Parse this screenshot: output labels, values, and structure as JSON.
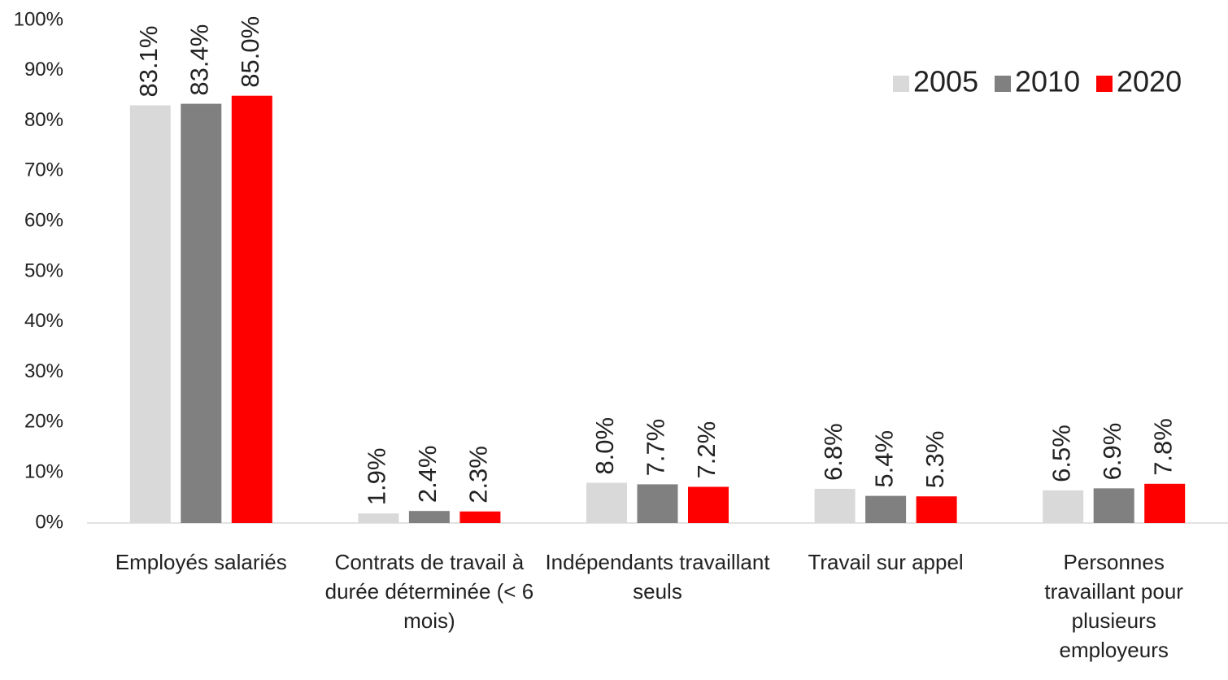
{
  "chart_data": {
    "type": "bar",
    "categories": [
      "Employés salariés",
      "Contrats de travail à durée déterminée (< 6 mois)",
      "Indépendants travaillant seuls",
      "Travail sur appel",
      "Personnes travaillant pour plusieurs employeurs"
    ],
    "series": [
      {
        "name": "2005",
        "color": "#d9d9d9",
        "values": [
          83.1,
          1.9,
          8.0,
          6.8,
          6.5
        ],
        "value_labels": [
          "83.1%",
          "1.9%",
          "8.0%",
          "6.8%",
          "6.5%"
        ]
      },
      {
        "name": "2010",
        "color": "#808080",
        "values": [
          83.4,
          2.4,
          7.7,
          5.4,
          6.9
        ],
        "value_labels": [
          "83.4%",
          "2.4%",
          "7.7%",
          "5.4%",
          "6.9%"
        ]
      },
      {
        "name": "2020",
        "color": "#ff0000",
        "values": [
          85.0,
          2.3,
          7.2,
          5.3,
          7.8
        ],
        "value_labels": [
          "85.0%",
          "2.3%",
          "7.2%",
          "5.3%",
          "7.8%"
        ]
      }
    ],
    "ylim": [
      0,
      100
    ],
    "yticks": [
      {
        "value": 0,
        "label": "0%"
      },
      {
        "value": 10,
        "label": "10%"
      },
      {
        "value": 20,
        "label": "20%"
      },
      {
        "value": 30,
        "label": "30%"
      },
      {
        "value": 40,
        "label": "40%"
      },
      {
        "value": 50,
        "label": "50%"
      },
      {
        "value": 60,
        "label": "60%"
      },
      {
        "value": 70,
        "label": "70%"
      },
      {
        "value": 80,
        "label": "80%"
      },
      {
        "value": 90,
        "label": "90%"
      },
      {
        "value": 100,
        "label": "100%"
      }
    ],
    "grid": false,
    "legend": "top-right"
  }
}
